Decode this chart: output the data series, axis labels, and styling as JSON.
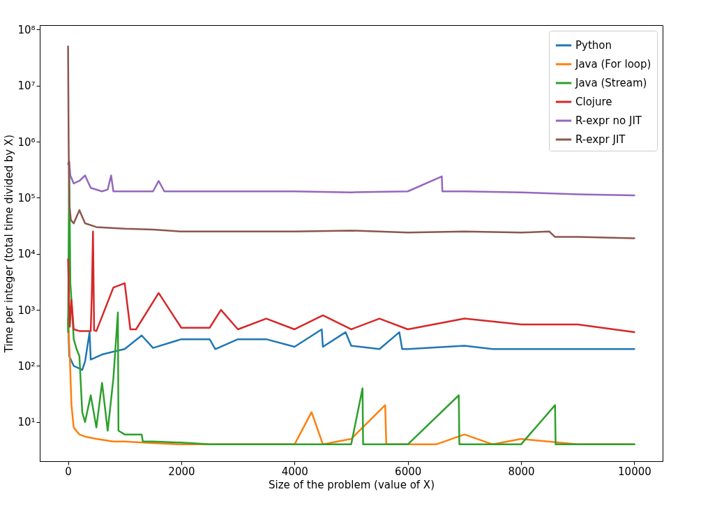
{
  "chart_data": {
    "type": "line",
    "xlabel": "Size of the problem (value of X)",
    "ylabel": "Time per integer (total time divided by X)",
    "xlim": [
      -500,
      10500
    ],
    "xticks": [
      0,
      2000,
      4000,
      6000,
      8000,
      10000
    ],
    "ylim": [
      2,
      120000000
    ],
    "log": true,
    "yticks": [
      {
        "value": 10,
        "label": "10¹"
      },
      {
        "value": 100,
        "label": "10²"
      },
      {
        "value": 1000,
        "label": "10³"
      },
      {
        "value": 10000,
        "label": "10⁴"
      },
      {
        "value": 100000,
        "label": "10⁵"
      },
      {
        "value": 1000000,
        "label": "10⁶"
      },
      {
        "value": 10000000,
        "label": "10⁷"
      },
      {
        "value": 100000000,
        "label": "10⁸"
      }
    ],
    "grid": false,
    "legend": "top right",
    "line_style": "solid",
    "series": [
      {
        "name": "Python",
        "color": "#1f77b4",
        "x": [
          0,
          20,
          100,
          200,
          250,
          300,
          380,
          400,
          600,
          800,
          1000,
          1300,
          1500,
          2000,
          2500,
          2600,
          3000,
          3500,
          4000,
          4480,
          4500,
          4900,
          5000,
          5500,
          5850,
          5900,
          6000,
          7000,
          7500,
          8000,
          9000,
          10000
        ],
        "values": [
          700,
          150,
          100,
          90,
          85,
          120,
          400,
          130,
          160,
          180,
          200,
          350,
          210,
          300,
          300,
          200,
          300,
          300,
          220,
          450,
          220,
          400,
          230,
          200,
          400,
          200,
          200,
          230,
          200,
          200,
          200,
          200
        ]
      },
      {
        "name": "Java (For loop)",
        "color": "#ff7f0e",
        "x": [
          0,
          30,
          60,
          100,
          200,
          300,
          500,
          800,
          1000,
          1500,
          2000,
          2500,
          3000,
          3500,
          4000,
          4300,
          4500,
          5000,
          5600,
          5620,
          6000,
          6500,
          7000,
          7500,
          8000,
          9000,
          10000
        ],
        "values": [
          700,
          150,
          20,
          8,
          6,
          5.5,
          5,
          4.5,
          4.5,
          4.2,
          4,
          4,
          4,
          4,
          4,
          15,
          4,
          5,
          20,
          4,
          4,
          4,
          6,
          4,
          5,
          4,
          4
        ]
      },
      {
        "name": "Java (Stream)",
        "color": "#2ca02c",
        "x": [
          0,
          20,
          40,
          60,
          100,
          150,
          200,
          250,
          300,
          400,
          500,
          600,
          700,
          800,
          880,
          890,
          1000,
          1200,
          1300,
          1320,
          1500,
          2000,
          2500,
          3000,
          3500,
          4000,
          4500,
          5000,
          5200,
          5210,
          5500,
          6000,
          6900,
          6910,
          7000,
          8000,
          8600,
          8610,
          9000,
          10000
        ],
        "values": [
          400,
          400000,
          3000,
          1500,
          300,
          200,
          150,
          15,
          10,
          30,
          8,
          50,
          7,
          60,
          900,
          7,
          6,
          6,
          6,
          4.5,
          4.5,
          4.3,
          4,
          4,
          4,
          4,
          4,
          4,
          40,
          4,
          4,
          4,
          30,
          4,
          4,
          4,
          20,
          4,
          4,
          4
        ]
      },
      {
        "name": "Clojure",
        "color": "#d62728",
        "x": [
          0,
          30,
          60,
          100,
          200,
          400,
          420,
          440,
          460,
          500,
          800,
          1000,
          1100,
          1200,
          1600,
          2000,
          2500,
          2700,
          3000,
          3500,
          4000,
          4500,
          5000,
          5500,
          6000,
          7000,
          8000,
          9000,
          10000
        ],
        "values": [
          8000,
          500,
          1500,
          450,
          420,
          420,
          2000,
          25000,
          430,
          420,
          2500,
          3000,
          450,
          450,
          2000,
          480,
          480,
          1000,
          450,
          700,
          450,
          800,
          450,
          700,
          450,
          700,
          550,
          550,
          400
        ]
      },
      {
        "name": "R-expr no JIT",
        "color": "#9467bd",
        "x": [
          0,
          20,
          40,
          100,
          200,
          300,
          400,
          500,
          600,
          700,
          760,
          800,
          1000,
          1500,
          1600,
          1700,
          2000,
          3000,
          4000,
          5000,
          6000,
          6600,
          6610,
          7000,
          8000,
          9000,
          10000
        ],
        "values": [
          400000,
          450000,
          250000,
          180000,
          200000,
          250000,
          150000,
          140000,
          130000,
          140000,
          250000,
          130000,
          130000,
          130000,
          200000,
          130000,
          130000,
          130000,
          130000,
          125000,
          130000,
          240000,
          130000,
          130000,
          125000,
          115000,
          110000
        ]
      },
      {
        "name": "R-expr JIT",
        "color": "#8c564b",
        "x": [
          0,
          10,
          20,
          50,
          100,
          200,
          300,
          500,
          1000,
          1500,
          2000,
          3000,
          4000,
          5000,
          6000,
          7000,
          8000,
          8500,
          8600,
          9000,
          10000
        ],
        "values": [
          50000000,
          1000000,
          80000,
          40000,
          35000,
          60000,
          35000,
          30000,
          28000,
          27000,
          25000,
          25000,
          25000,
          26000,
          24000,
          25000,
          24000,
          25000,
          20000,
          20000,
          19000
        ]
      }
    ]
  }
}
